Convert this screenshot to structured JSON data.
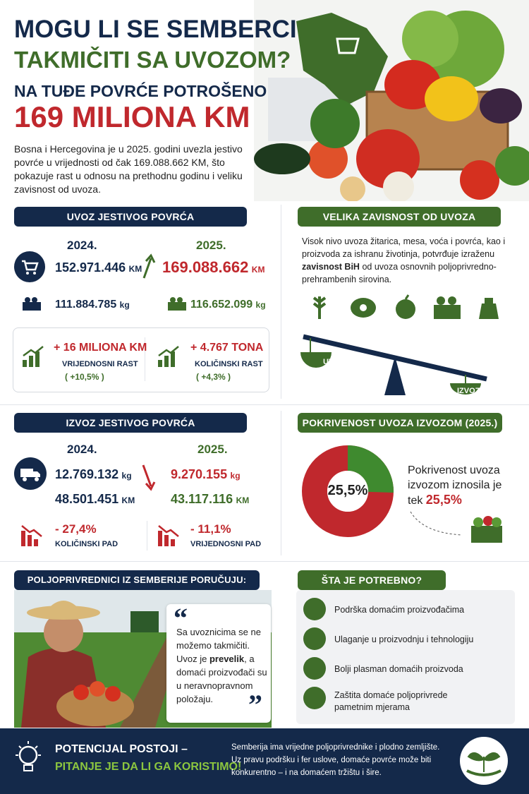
{
  "header": {
    "title_line1": "MOGU LI SE SEMBERCI",
    "title_line2": "TAKMIČITI SA UVOZOM?",
    "subtitle": "NA TUĐE POVRĆE POTROŠENO",
    "headline_amount": "169 MILIONA KM",
    "intro": "Bosna i Hercegovina je u 2025. godini uvezla jestivo povrće u vrijednosti od čak 169.088.662 KM, što pokazuje rast u odnosu na prethodnu godinu i veliku zavisnost od uvoza."
  },
  "units": {
    "km": "KM",
    "kg": "kg"
  },
  "import": {
    "title": "UVOZ JESTIVOG POVRĆA",
    "year_prev": "2024.",
    "year_curr": "2025.",
    "value_prev": "152.971.446",
    "value_curr": "169.088.662",
    "qty_prev": "111.884.785",
    "qty_curr": "116.652.099",
    "growth": [
      {
        "amount": "+ 16 MILIONA KM",
        "label": "VRIJEDNOSNI RAST",
        "pct": "( +10,5% )"
      },
      {
        "amount": "+ 4.767 TONA",
        "label": "KOLIČINSKI RAST",
        "pct": "( +4,3% )"
      }
    ]
  },
  "dependence": {
    "title": "VELIKA ZAVISNOST OD UVOZA",
    "text_parts": [
      "Visok nivo uvoza žitarica, mesa, voća i povrća, kao i proizvoda za ishranu životinja, potvrđuje izraženu ",
      "zavisnost BiH",
      " od uvoza osnovnih poljoprivredno-prehrambenih sirovina."
    ],
    "scale_left": "UVOZ",
    "scale_right": "IZVOZ"
  },
  "export": {
    "title": "IZVOZ JESTIVOG POVRĆA",
    "year_prev": "2024.",
    "year_curr": "2025.",
    "qty_prev": "12.769.132",
    "qty_curr": "9.270.155",
    "value_prev": "48.501.451",
    "value_curr": "43.117.116",
    "declines": [
      {
        "amount": "- 27,4%",
        "label": "KOLIČINSKI PAD"
      },
      {
        "amount": "- 11,1%",
        "label": "VRIJEDNOSNI PAD"
      }
    ]
  },
  "coverage": {
    "title": "POKRIVENOST UVOZA IZVOZOM (2025.)",
    "value": 25.5,
    "label": "25,5%",
    "text": "Pokrivenost uvoza izvozom iznosila je tek"
  },
  "farmers": {
    "title": "POLJOPRIVREDNICI IZ SEMBERIJE PORUČUJU:",
    "quote_parts": [
      "Sa uvoznicima se ne možemo takmičiti. Uvoz je ",
      "prevelik",
      ", a domaći proizvođači su u neravnopravnom položaju."
    ]
  },
  "needs": {
    "title": "ŠTA JE POTREBNO?",
    "items": [
      "Podrška domaćim proizvođačima",
      "Ulaganje u proizvodnju i tehnologiju",
      "Bolji plasman domaćih proizvoda",
      "Zaštita domaće poljoprivrede pametnim mjerama"
    ]
  },
  "footer": {
    "title_line1": "POTENCIJAL POSTOJI –",
    "title_line2": "PITANJE JE DA LI GA KORISTIMO!",
    "text": "Semberija ima vrijedne poljoprivrednike i plodno zemljište. Uz pravu podršku i fer uslove, domaće povrće može biti konkurentno – i na domaćem tržištu i šire."
  }
}
